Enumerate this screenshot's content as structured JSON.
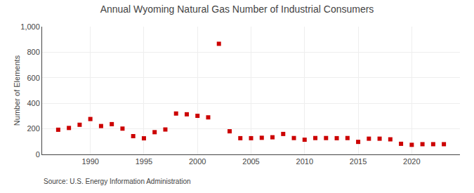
{
  "chart_data": {
    "type": "scatter",
    "title": "Annual Wyoming Natural Gas Number of Industrial Consumers",
    "ylabel": "Number of Elements",
    "annotations": [
      "Source: U.S. Energy Information Administration"
    ],
    "x": [
      1987,
      1988,
      1989,
      1990,
      1991,
      1992,
      1993,
      1994,
      1995,
      1996,
      1997,
      1998,
      1999,
      2000,
      2001,
      2002,
      2003,
      2004,
      2005,
      2006,
      2007,
      2008,
      2009,
      2010,
      2011,
      2012,
      2013,
      2014,
      2015,
      2016,
      2017,
      2018,
      2019,
      2020,
      2021,
      2022,
      2023
    ],
    "values": [
      193,
      207,
      232,
      277,
      222,
      237,
      202,
      143,
      126,
      174,
      195,
      320,
      314,
      302,
      290,
      866,
      181,
      127,
      127,
      130,
      134,
      160,
      128,
      115,
      128,
      128,
      127,
      128,
      98,
      123,
      123,
      118,
      83,
      75,
      80,
      80,
      80
    ],
    "color": "#cc0000",
    "marker": "square",
    "xlim": [
      1985.5,
      2024.5
    ],
    "xticks": [
      1990,
      1995,
      2000,
      2005,
      2010,
      2015,
      2020
    ],
    "ylim": [
      0,
      1000
    ],
    "yticks": [
      0,
      200,
      400,
      600,
      800,
      {
        "value": 1000,
        "label": "1,000"
      }
    ],
    "grid": true
  }
}
